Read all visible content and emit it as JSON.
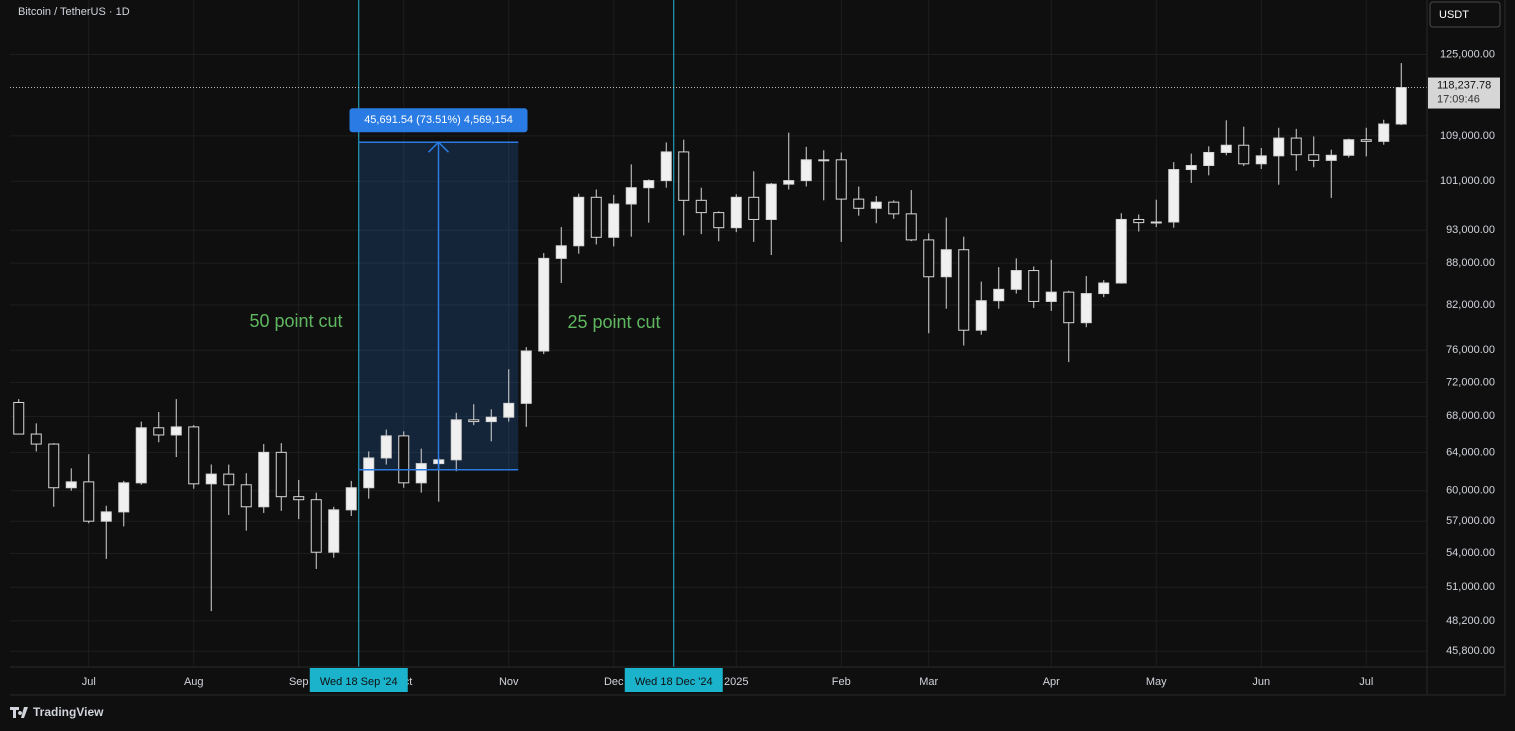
{
  "chart_data": {
    "type": "candlestick",
    "title": "Bitcoin / TetherUS · 1D",
    "currency": "USDT",
    "categories": [
      null,
      null,
      null,
      null,
      "Jul",
      null,
      null,
      null,
      null,
      null,
      "Aug",
      null,
      null,
      null,
      null,
      null,
      "Sep",
      null,
      null,
      null,
      null,
      null,
      "Oct",
      null,
      null,
      null,
      null,
      null,
      "Nov",
      null,
      null,
      null,
      null,
      null,
      "Dec",
      null,
      null,
      null,
      null,
      null,
      null,
      "2025",
      null,
      null,
      null,
      null,
      null,
      "Feb",
      null,
      null,
      null,
      null,
      "Mar",
      null,
      null,
      null,
      null,
      null,
      null,
      "Apr",
      null,
      null,
      null,
      null,
      null,
      "May",
      null,
      null,
      null,
      null,
      null,
      "Jun",
      null,
      null,
      null,
      null,
      null,
      "Jul",
      null,
      null
    ],
    "open": [
      69600,
      66000,
      64900,
      60300,
      60900,
      57000,
      57900,
      60800,
      66700,
      65900,
      66800,
      60700,
      61700,
      60600,
      58400,
      64000,
      59400,
      59100,
      54100,
      58100,
      60300,
      63400,
      65800,
      60800,
      62800,
      63200,
      67600,
      67400,
      67900,
      69500,
      75900,
      88700,
      90600,
      98300,
      91900,
      97200,
      99900,
      101100,
      106100,
      97800,
      95800,
      93400,
      98300,
      94700,
      100500,
      101100,
      104700,
      104700,
      98000,
      96500,
      97500,
      95600,
      91500,
      86000,
      90000,
      78600,
      82600,
      84200,
      86900,
      82500,
      83800,
      79600,
      83600,
      85100,
      94700,
      94200,
      94300,
      103000,
      103700,
      106000,
      107300,
      104000,
      105400,
      108600,
      105600,
      104600,
      105500,
      108300,
      108000,
      111200
    ],
    "high": [
      70000,
      67200,
      65000,
      62300,
      63800,
      58500,
      61000,
      67400,
      68500,
      70000,
      67000,
      62700,
      62700,
      61800,
      64900,
      65000,
      61100,
      59800,
      58400,
      61000,
      64100,
      66500,
      66300,
      64400,
      63400,
      68400,
      69400,
      68800,
      73600,
      76400,
      89500,
      93500,
      98900,
      99600,
      98700,
      103900,
      101300,
      107800,
      108300,
      99900,
      96000,
      98800,
      102700,
      100700,
      109600,
      107000,
      106400,
      106000,
      100100,
      98500,
      97800,
      99500,
      92500,
      95000,
      92000,
      85300,
      87400,
      88700,
      87500,
      88500,
      84000,
      86100,
      85500,
      95700,
      95500,
      97900,
      104300,
      105800,
      107100,
      111900,
      110700,
      106800,
      110500,
      110300,
      108900,
      106500,
      108500,
      110500,
      112000,
      123200
    ],
    "low": [
      66000,
      64100,
      58400,
      60000,
      56800,
      53500,
      56500,
      60600,
      65100,
      63500,
      60200,
      49000,
      57600,
      56100,
      57800,
      58000,
      57200,
      52600,
      53600,
      57500,
      59200,
      62700,
      60300,
      59800,
      58900,
      62000,
      67000,
      65200,
      67400,
      66800,
      75500,
      85100,
      89400,
      90800,
      90500,
      92000,
      94200,
      99900,
      92200,
      92400,
      91300,
      92700,
      91200,
      89200,
      99600,
      100100,
      97800,
      91200,
      95300,
      94100,
      94800,
      91300,
      78200,
      81500,
      76600,
      78000,
      81500,
      83600,
      81600,
      81200,
      74500,
      79000,
      83100,
      85000,
      92800,
      93500,
      93400,
      100700,
      102000,
      105500,
      103600,
      103100,
      100400,
      102800,
      103400,
      98200,
      105100,
      105300,
      107400,
      111000
    ],
    "close": [
      66000,
      64900,
      60300,
      60900,
      57000,
      57900,
      60800,
      66700,
      65900,
      66800,
      60700,
      61700,
      60600,
      58400,
      64000,
      59400,
      59100,
      54100,
      58100,
      60300,
      63400,
      65800,
      60800,
      62800,
      63200,
      67600,
      67400,
      67900,
      69500,
      75900,
      88700,
      90600,
      98300,
      91900,
      97200,
      99900,
      101100,
      106100,
      97800,
      95800,
      93400,
      98300,
      94700,
      100500,
      101100,
      104700,
      104700,
      98000,
      96500,
      97500,
      95600,
      91500,
      86000,
      90000,
      78600,
      82600,
      84200,
      86900,
      82500,
      83800,
      79600,
      83600,
      85100,
      94700,
      94200,
      94300,
      103000,
      103700,
      106000,
      107300,
      104000,
      105400,
      108600,
      105600,
      104600,
      105500,
      108300,
      108000,
      111200,
      118237.78
    ],
    "up_color": "#f0f0f0",
    "down_color": "#0f0f0f",
    "wick_color": "#d6d6d6",
    "log_scale": true,
    "grid": true,
    "ylim": [
      44600,
      137000
    ],
    "yticks": [
      {
        "value": 125000,
        "label": "125,000.00"
      },
      {
        "value": 109000,
        "label": "109,000.00"
      },
      {
        "value": 101000,
        "label": "101,000.00"
      },
      {
        "value": 93000,
        "label": "93,000.00"
      },
      {
        "value": 88000,
        "label": "88,000.00"
      },
      {
        "value": 82000,
        "label": "82,000.00"
      },
      {
        "value": 76000,
        "label": "76,000.00"
      },
      {
        "value": 72000,
        "label": "72,000.00"
      },
      {
        "value": 68000,
        "label": "68,000.00"
      },
      {
        "value": 64000,
        "label": "64,000.00"
      },
      {
        "value": 60000,
        "label": "60,000.00"
      },
      {
        "value": 57000,
        "label": "57,000.00"
      },
      {
        "value": 54000,
        "label": "54,000.00"
      },
      {
        "value": 51000,
        "label": "51,000.00"
      },
      {
        "value": 48200,
        "label": "48,200.00"
      },
      {
        "value": 45800,
        "label": "45,800.00"
      }
    ],
    "last_price": {
      "value": 118237.78,
      "label": "118,237.78"
    },
    "countdown": "17:09:46",
    "markers": [
      "Wed 18 Sep '24",
      "Wed 18 Dec '24"
    ],
    "measure": {
      "label": "45,691.54 (73.51%) 4,569,154",
      "low": 62157,
      "high": 107848,
      "color": "#2a7be4"
    },
    "annotations": [
      "50 point cut",
      "25 point cut"
    ],
    "annotation_color": "#5fb760"
  },
  "footer": {
    "brand": "TradingView"
  }
}
